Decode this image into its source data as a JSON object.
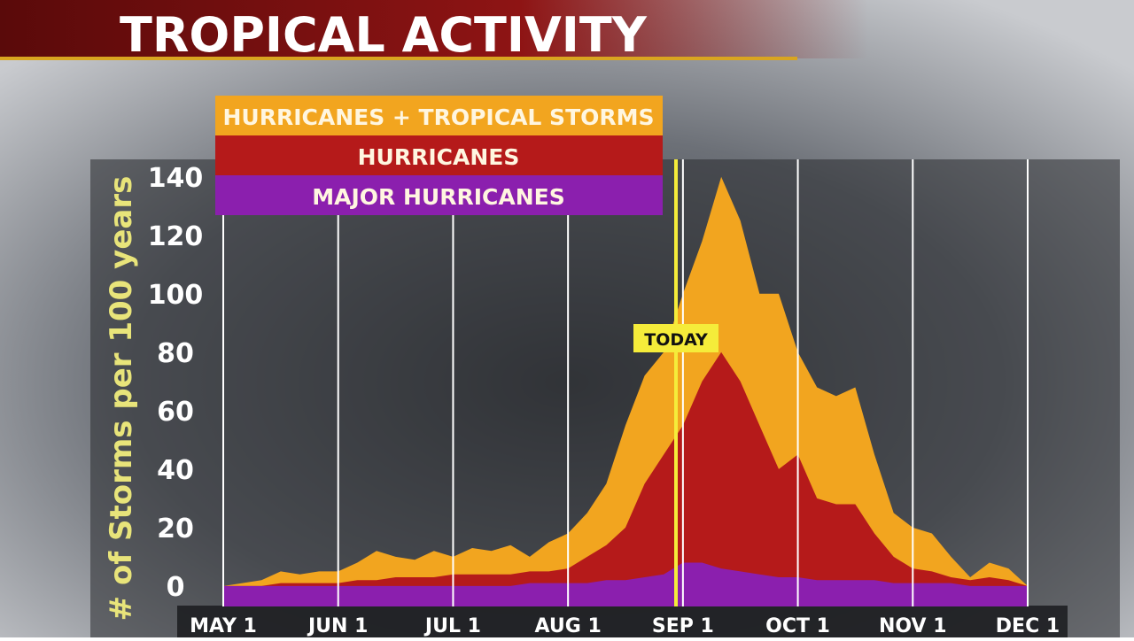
{
  "chart_data": {
    "type": "area",
    "title": "TROPICAL ACTIVITY",
    "y_label": "# of Storms per 100 years",
    "annotation": "TODAY",
    "categories": [
      "MAY 1",
      null,
      null,
      null,
      null,
      null,
      "JUN 1",
      null,
      null,
      null,
      null,
      null,
      "JUL 1",
      null,
      null,
      null,
      null,
      null,
      "AUG 1",
      null,
      null,
      null,
      null,
      null,
      "SEP 1",
      null,
      null,
      null,
      null,
      null,
      "OCT 1",
      null,
      null,
      null,
      null,
      null,
      "NOV 1",
      null,
      null,
      null,
      null,
      null,
      "DEC 1"
    ],
    "series": [
      {
        "name": "HURRICANES + TROPICAL STORMS",
        "color": "#f2a51f",
        "values": [
          0,
          1,
          2,
          5,
          4,
          5,
          5,
          8,
          12,
          10,
          9,
          12,
          10,
          13,
          12,
          14,
          10,
          15,
          18,
          25,
          35,
          55,
          72,
          80,
          100,
          118,
          140,
          125,
          100,
          100,
          80,
          68,
          65,
          68,
          45,
          25,
          20,
          18,
          10,
          3,
          8,
          6,
          0
        ]
      },
      {
        "name": "HURRICANES",
        "color": "#b51a1a",
        "values": [
          0,
          0,
          0,
          1,
          1,
          1,
          1,
          2,
          2,
          3,
          3,
          3,
          4,
          4,
          4,
          4,
          5,
          5,
          6,
          10,
          14,
          20,
          35,
          45,
          55,
          70,
          80,
          70,
          55,
          40,
          45,
          30,
          28,
          28,
          18,
          10,
          6,
          5,
          3,
          2,
          3,
          2,
          0
        ]
      },
      {
        "name": "MAJOR HURRICANES",
        "color": "#8b1fae",
        "values": [
          0,
          0,
          0,
          0,
          0,
          0,
          0,
          0,
          0,
          0,
          0,
          0,
          0,
          0,
          0,
          0,
          1,
          1,
          1,
          1,
          2,
          2,
          3,
          4,
          8,
          8,
          6,
          5,
          4,
          3,
          3,
          2,
          2,
          2,
          2,
          1,
          1,
          1,
          1,
          0,
          0,
          0,
          0
        ]
      }
    ],
    "ylim": [
      -7,
      146
    ],
    "yticks": [
      0,
      20,
      40,
      60,
      80,
      100,
      120,
      140
    ],
    "grid": true
  }
}
